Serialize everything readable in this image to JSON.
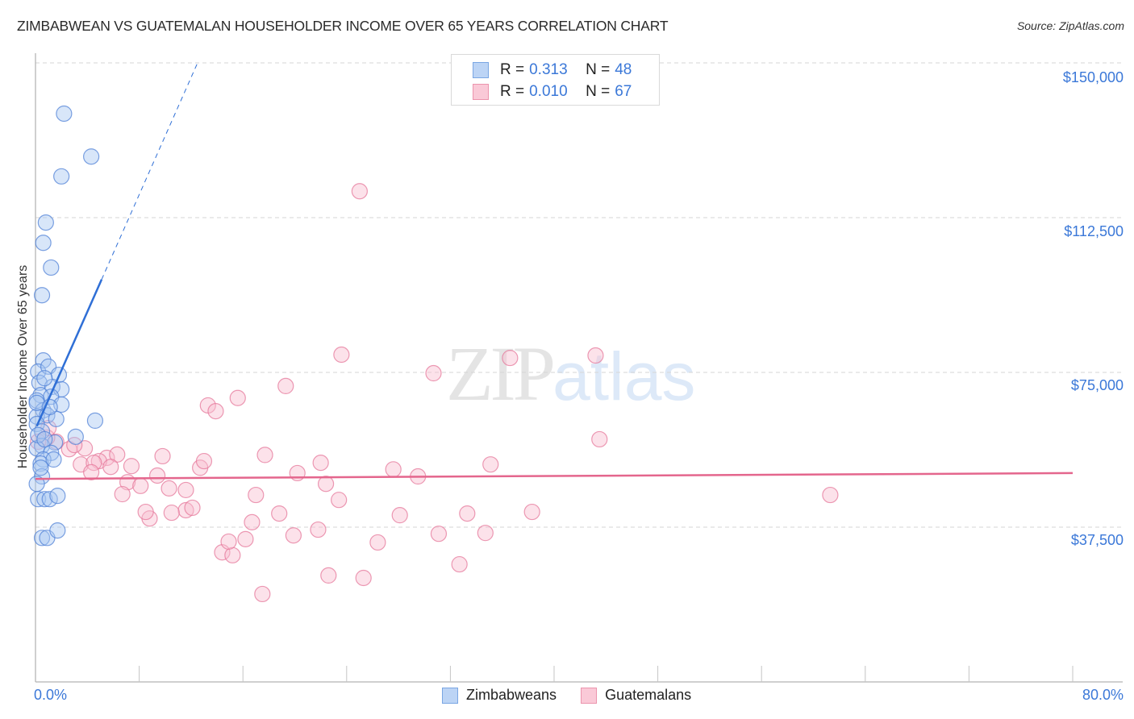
{
  "header": {
    "title": "ZIMBABWEAN VS GUATEMALAN HOUSEHOLDER INCOME OVER 65 YEARS CORRELATION CHART",
    "source": "Source: ZipAtlas.com"
  },
  "watermark": {
    "zip": "ZIP",
    "atlas": "atlas"
  },
  "legend": {
    "series": [
      {
        "name": "Zimbabweans",
        "r_label": "R =",
        "r_value": "0.313",
        "n_label": "N =",
        "n_value": "48",
        "color": "#a9c8f2",
        "border": "#6f9fe0"
      },
      {
        "name": "Guatemalans",
        "r_label": "R =",
        "r_value": "0.010",
        "n_label": "N =",
        "n_value": "67",
        "color": "#f8bfd0",
        "border": "#e9839f"
      }
    ]
  },
  "axes": {
    "ylabel": "Householder Income Over 65 years",
    "y_ticks": [
      "$150,000",
      "$112,500",
      "$75,000",
      "$37,500"
    ],
    "x_min_label": "0.0%",
    "x_max_label": "80.0%"
  },
  "chart_data": {
    "type": "scatter",
    "title": "ZIMBABWEAN VS GUATEMALAN HOUSEHOLDER INCOME OVER 65 YEARS CORRELATION CHART",
    "xlabel": "",
    "ylabel": "Householder Income Over 65 years",
    "xlim": [
      0,
      80
    ],
    "ylim": [
      0,
      157000
    ],
    "x_unit": "%",
    "y_ticks": [
      37500,
      75000,
      112500,
      150000
    ],
    "x_ticks": [
      0,
      8,
      16,
      24,
      32,
      40,
      48,
      56,
      64,
      72,
      80
    ],
    "grid": "horizontal dashed",
    "legend_position": "top-center",
    "series": [
      {
        "name": "Zimbabweans",
        "color": "#a9c8f2",
        "R": 0.313,
        "N": 48,
        "trend": {
          "x0": 0.1,
          "y0": 62000,
          "x1": 5.1,
          "y1": 97500,
          "dashed_extension_to": [
            12.5,
            150000
          ]
        },
        "points": [
          [
            2.2,
            137700
          ],
          [
            4.3,
            127300
          ],
          [
            2.0,
            122500
          ],
          [
            0.8,
            111300
          ],
          [
            0.6,
            106400
          ],
          [
            1.2,
            100400
          ],
          [
            0.5,
            93700
          ],
          [
            0.6,
            77900
          ],
          [
            0.2,
            75200
          ],
          [
            1.0,
            76400
          ],
          [
            1.8,
            74400
          ],
          [
            0.3,
            72500
          ],
          [
            1.3,
            71500
          ],
          [
            2.0,
            70900
          ],
          [
            0.4,
            69500
          ],
          [
            1.2,
            69100
          ],
          [
            0.1,
            68200
          ],
          [
            2.0,
            67200
          ],
          [
            0.6,
            65800
          ],
          [
            0.1,
            64300
          ],
          [
            0.9,
            64600
          ],
          [
            1.6,
            63700
          ],
          [
            0.1,
            62500
          ],
          [
            4.6,
            63300
          ],
          [
            0.5,
            60700
          ],
          [
            3.1,
            59400
          ],
          [
            1.5,
            58000
          ],
          [
            0.5,
            57200
          ],
          [
            0.1,
            56600
          ],
          [
            1.2,
            55500
          ],
          [
            0.6,
            53900
          ],
          [
            0.4,
            52900
          ],
          [
            0.5,
            49800
          ],
          [
            0.2,
            44300
          ],
          [
            0.7,
            44300
          ],
          [
            1.1,
            44300
          ],
          [
            1.7,
            45100
          ],
          [
            0.5,
            34900
          ],
          [
            0.9,
            34900
          ],
          [
            1.7,
            36700
          ],
          [
            0.1,
            67600
          ],
          [
            0.7,
            73600
          ],
          [
            0.2,
            59800
          ],
          [
            0.7,
            58800
          ],
          [
            1.1,
            66600
          ],
          [
            0.4,
            51900
          ],
          [
            1.4,
            53900
          ],
          [
            0.1,
            48000
          ]
        ]
      },
      {
        "name": "Guatemalans",
        "color": "#f8bfd0",
        "R": 0.01,
        "N": 67,
        "trend": {
          "x0": 0,
          "y0": 49200,
          "x1": 80,
          "y1": 50600
        },
        "points": [
          [
            25.0,
            118900
          ],
          [
            23.6,
            79300
          ],
          [
            36.6,
            78500
          ],
          [
            43.2,
            79100
          ],
          [
            30.7,
            74800
          ],
          [
            19.3,
            71700
          ],
          [
            15.6,
            68800
          ],
          [
            13.3,
            67000
          ],
          [
            13.9,
            65600
          ],
          [
            43.5,
            58800
          ],
          [
            17.7,
            55000
          ],
          [
            22.0,
            53100
          ],
          [
            35.1,
            52700
          ],
          [
            27.6,
            51500
          ],
          [
            29.5,
            49800
          ],
          [
            9.8,
            54700
          ],
          [
            5.5,
            54300
          ],
          [
            6.3,
            55100
          ],
          [
            4.9,
            53500
          ],
          [
            3.5,
            52700
          ],
          [
            4.5,
            53100
          ],
          [
            12.7,
            51900
          ],
          [
            13.0,
            53500
          ],
          [
            5.8,
            52100
          ],
          [
            4.3,
            50800
          ],
          [
            7.4,
            52300
          ],
          [
            20.2,
            50600
          ],
          [
            9.4,
            50000
          ],
          [
            7.1,
            48400
          ],
          [
            8.1,
            47500
          ],
          [
            22.4,
            48000
          ],
          [
            10.3,
            46900
          ],
          [
            11.6,
            46500
          ],
          [
            17.0,
            45300
          ],
          [
            61.3,
            45300
          ],
          [
            6.7,
            45500
          ],
          [
            11.6,
            41600
          ],
          [
            10.5,
            41000
          ],
          [
            12.1,
            42200
          ],
          [
            18.8,
            40800
          ],
          [
            23.4,
            44100
          ],
          [
            33.3,
            40800
          ],
          [
            38.3,
            41200
          ],
          [
            28.1,
            40400
          ],
          [
            8.8,
            39600
          ],
          [
            8.5,
            41200
          ],
          [
            16.7,
            38700
          ],
          [
            19.9,
            35500
          ],
          [
            21.8,
            36900
          ],
          [
            31.1,
            35900
          ],
          [
            34.7,
            36100
          ],
          [
            26.4,
            33800
          ],
          [
            16.2,
            34600
          ],
          [
            14.4,
            31400
          ],
          [
            15.2,
            30700
          ],
          [
            14.9,
            34000
          ],
          [
            32.7,
            28500
          ],
          [
            22.6,
            25800
          ],
          [
            25.3,
            25200
          ],
          [
            17.5,
            21300
          ],
          [
            1.6,
            58200
          ],
          [
            0.9,
            59200
          ],
          [
            0.2,
            58200
          ],
          [
            2.6,
            56400
          ],
          [
            3.8,
            56600
          ],
          [
            1.0,
            61500
          ],
          [
            3.0,
            57400
          ]
        ]
      }
    ]
  }
}
